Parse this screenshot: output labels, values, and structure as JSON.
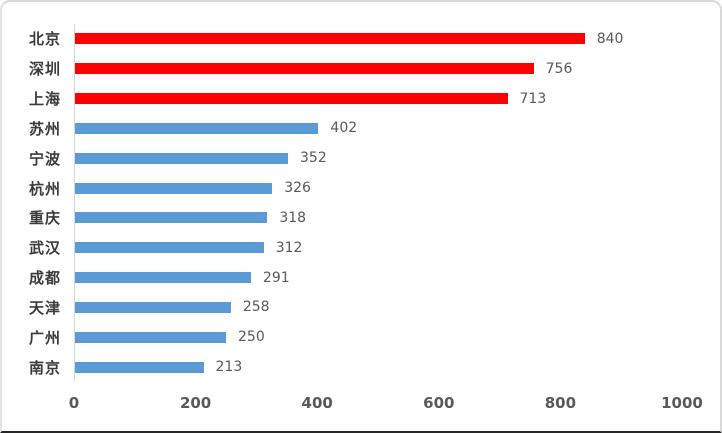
{
  "chart_data": {
    "type": "bar",
    "orientation": "horizontal",
    "title": "",
    "xlabel": "",
    "ylabel": "",
    "categories": [
      "北京",
      "深圳",
      "上海",
      "苏州",
      "宁波",
      "杭州",
      "重庆",
      "武汉",
      "成都",
      "天津",
      "广州",
      "南京"
    ],
    "values": [
      840,
      756,
      713,
      402,
      352,
      326,
      318,
      312,
      291,
      258,
      250,
      213
    ],
    "data_labels": [
      "840",
      "756",
      "713",
      "402",
      "352",
      "326",
      "318",
      "312",
      "291",
      "258",
      "250",
      "213"
    ],
    "bar_colors": [
      "#fe0000",
      "#fe0000",
      "#fe0000",
      "#5b9bd5",
      "#5b9bd5",
      "#5b9bd5",
      "#5b9bd5",
      "#5b9bd5",
      "#5b9bd5",
      "#5b9bd5",
      "#5b9bd5",
      "#5b9bd5"
    ],
    "xlim": [
      0,
      1000
    ],
    "x_ticks": [
      "0",
      "200",
      "400",
      "600",
      "800",
      "1000"
    ],
    "grid": false,
    "legend": false
  },
  "colors": {
    "highlight_red": "#fe0000",
    "default_blue": "#5b9bd5",
    "axis_line": "#d6d6d6",
    "tick_text": "#595959",
    "value_text": "#595959",
    "category_text": "#3b3b3b",
    "frame_border": "#d9d9d9",
    "frame_bottom": "#262626",
    "background": "#ffffff"
  }
}
